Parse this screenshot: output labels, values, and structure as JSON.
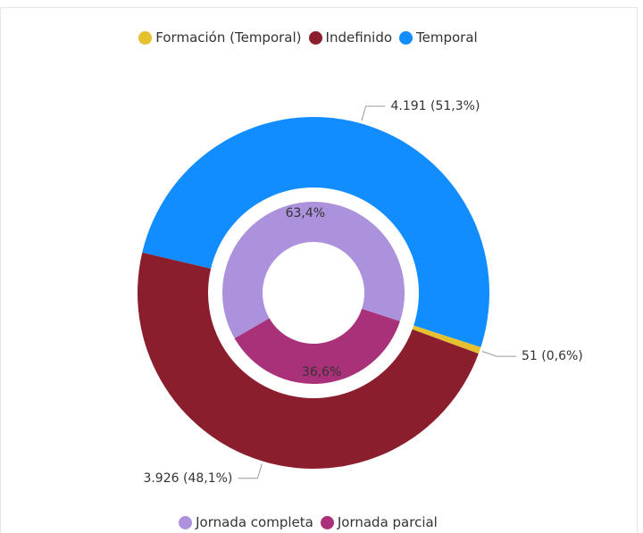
{
  "chart_data": [
    {
      "type": "donut",
      "categories": [
        "Formación (Temporal)",
        "Indefinido",
        "Temporal"
      ],
      "values": [
        51,
        3926,
        4191
      ],
      "value_labels": [
        "51 (0,6%)",
        "3.926 (48,1%)",
        "4.191 (51,3%)"
      ],
      "colors": [
        "#e6c12f",
        "#8b1e2d",
        "#118dff"
      ]
    },
    {
      "type": "donut",
      "categories": [
        "Jornada completa",
        "Jornada parcial"
      ],
      "values": [
        63.4,
        36.6
      ],
      "value_labels": [
        "63,4%",
        "36,6%"
      ],
      "colors": [
        "#ac92dc",
        "#a9317a"
      ]
    }
  ]
}
